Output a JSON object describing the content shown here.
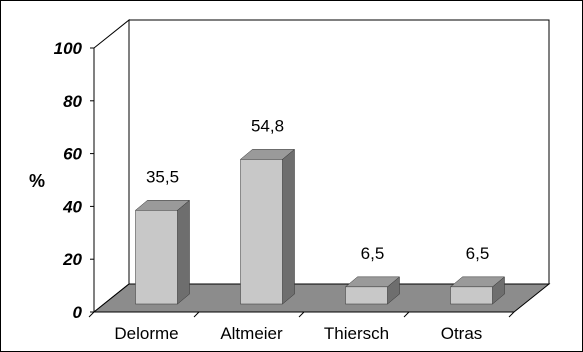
{
  "chart_data": {
    "type": "bar",
    "categories": [
      "Delorme",
      "Altmeier",
      "Thiersch",
      "Otras"
    ],
    "values": [
      35.5,
      54.8,
      6.5,
      6.5
    ],
    "data_labels": [
      "35,5",
      "54,8",
      "6,5",
      "6,5"
    ],
    "ylabel": "%",
    "xlabel": "",
    "ylim": [
      0,
      100
    ],
    "yticks": [
      "0",
      "20",
      "40",
      "60",
      "80",
      "100"
    ],
    "grid": false,
    "legend": "none",
    "style": "3d",
    "colors": {
      "bar_front": "#c8c8c8",
      "bar_top": "#9a9a9a",
      "bar_side": "#6e6e6e",
      "floor": "#8c8c8c",
      "walls": "#ffffff"
    }
  }
}
